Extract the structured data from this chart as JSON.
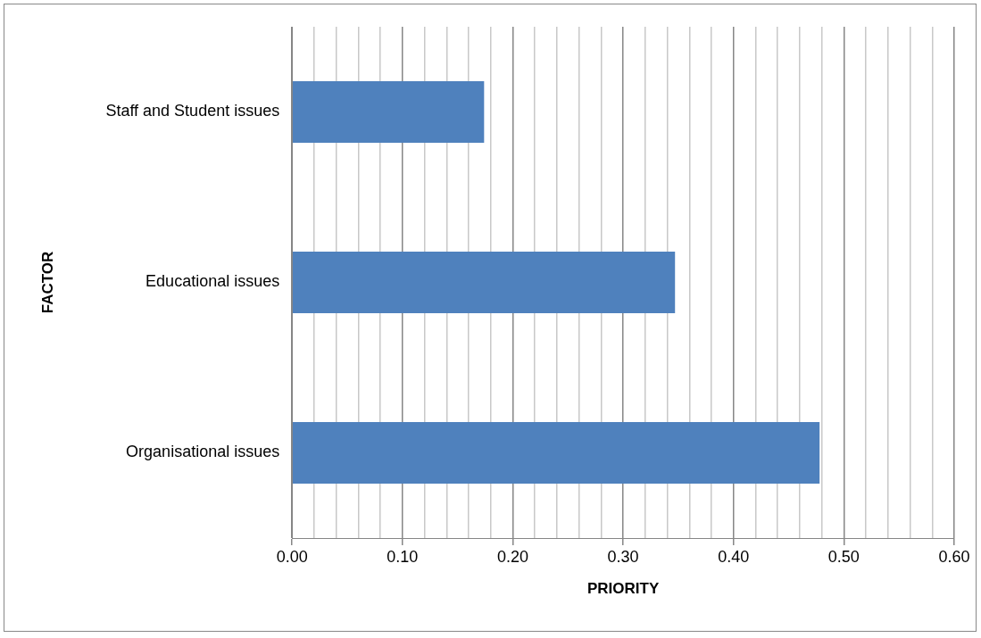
{
  "chart_data": {
    "type": "bar",
    "orientation": "horizontal",
    "xlabel": "PRIORITY",
    "ylabel": "FACTOR",
    "categories": [
      "Staff and Student issues",
      "Educational issues",
      "Organisational issues"
    ],
    "values": [
      0.174,
      0.347,
      0.478
    ],
    "color": "#4f81bd",
    "xlim": [
      0,
      0.6
    ],
    "xticks": [
      {
        "value": 0,
        "label": "0.00"
      },
      {
        "value": 0.02,
        "label": null
      },
      {
        "value": 0.04,
        "label": null
      },
      {
        "value": 0.06,
        "label": null
      },
      {
        "value": 0.08,
        "label": null
      },
      {
        "value": 0.1,
        "label": "0.10"
      },
      {
        "value": 0.12,
        "label": null
      },
      {
        "value": 0.14,
        "label": null
      },
      {
        "value": 0.16,
        "label": null
      },
      {
        "value": 0.18,
        "label": null
      },
      {
        "value": 0.2,
        "label": "0.20"
      },
      {
        "value": 0.22,
        "label": null
      },
      {
        "value": 0.24,
        "label": null
      },
      {
        "value": 0.26,
        "label": null
      },
      {
        "value": 0.28,
        "label": null
      },
      {
        "value": 0.3,
        "label": "0.30"
      },
      {
        "value": 0.32,
        "label": null
      },
      {
        "value": 0.34,
        "label": null
      },
      {
        "value": 0.36,
        "label": null
      },
      {
        "value": 0.38,
        "label": null
      },
      {
        "value": 0.4,
        "label": "0.40"
      },
      {
        "value": 0.42,
        "label": null
      },
      {
        "value": 0.44,
        "label": null
      },
      {
        "value": 0.46,
        "label": null
      },
      {
        "value": 0.48,
        "label": null
      },
      {
        "value": 0.5,
        "label": "0.50"
      },
      {
        "value": 0.52,
        "label": null
      },
      {
        "value": 0.54,
        "label": null
      },
      {
        "value": 0.56,
        "label": null
      },
      {
        "value": 0.58,
        "label": null
      },
      {
        "value": 0.6,
        "label": "0.60"
      }
    ],
    "grid": "x",
    "legend": false
  }
}
